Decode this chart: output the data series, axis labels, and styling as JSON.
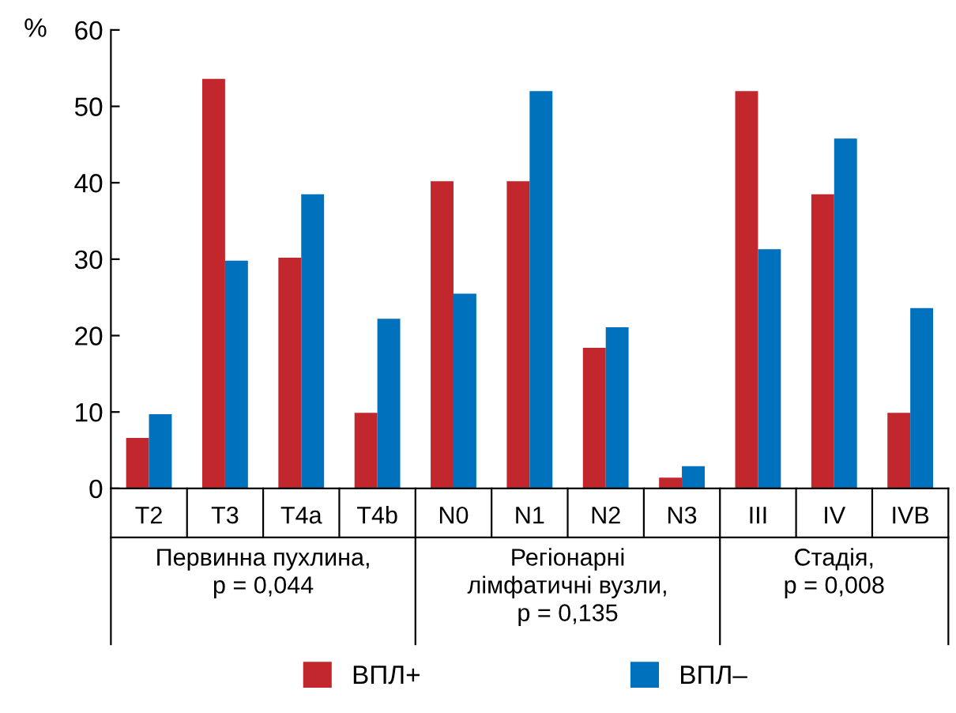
{
  "chart_data": {
    "type": "bar",
    "ylabel": "%",
    "categories": [
      "T2",
      "T3",
      "T4a",
      "T4b",
      "N0",
      "N1",
      "N2",
      "N3",
      "III",
      "IV",
      "IVB"
    ],
    "series": [
      {
        "name": "ВПЛ+",
        "color": "#c1272d",
        "values": [
          6.6,
          53.6,
          30.2,
          9.9,
          40.2,
          40.2,
          18.4,
          1.4,
          52,
          38.5,
          9.9
        ]
      },
      {
        "name": "ВПЛ–",
        "color": "#0071bc",
        "values": [
          9.7,
          29.8,
          38.5,
          22.2,
          25.5,
          52,
          21.1,
          2.9,
          31.3,
          45.8,
          23.6
        ]
      }
    ],
    "ylim": [
      0,
      60
    ],
    "yticks": [
      0,
      10,
      20,
      30,
      40,
      50,
      60
    ],
    "grid": false,
    "legend": "bottom",
    "annotations": [
      "Первинна пухлина,\np = 0,044",
      "Регіонарні\nлімфатичні вузли,\np = 0,135",
      "Стадія,\np = 0,008"
    ]
  }
}
